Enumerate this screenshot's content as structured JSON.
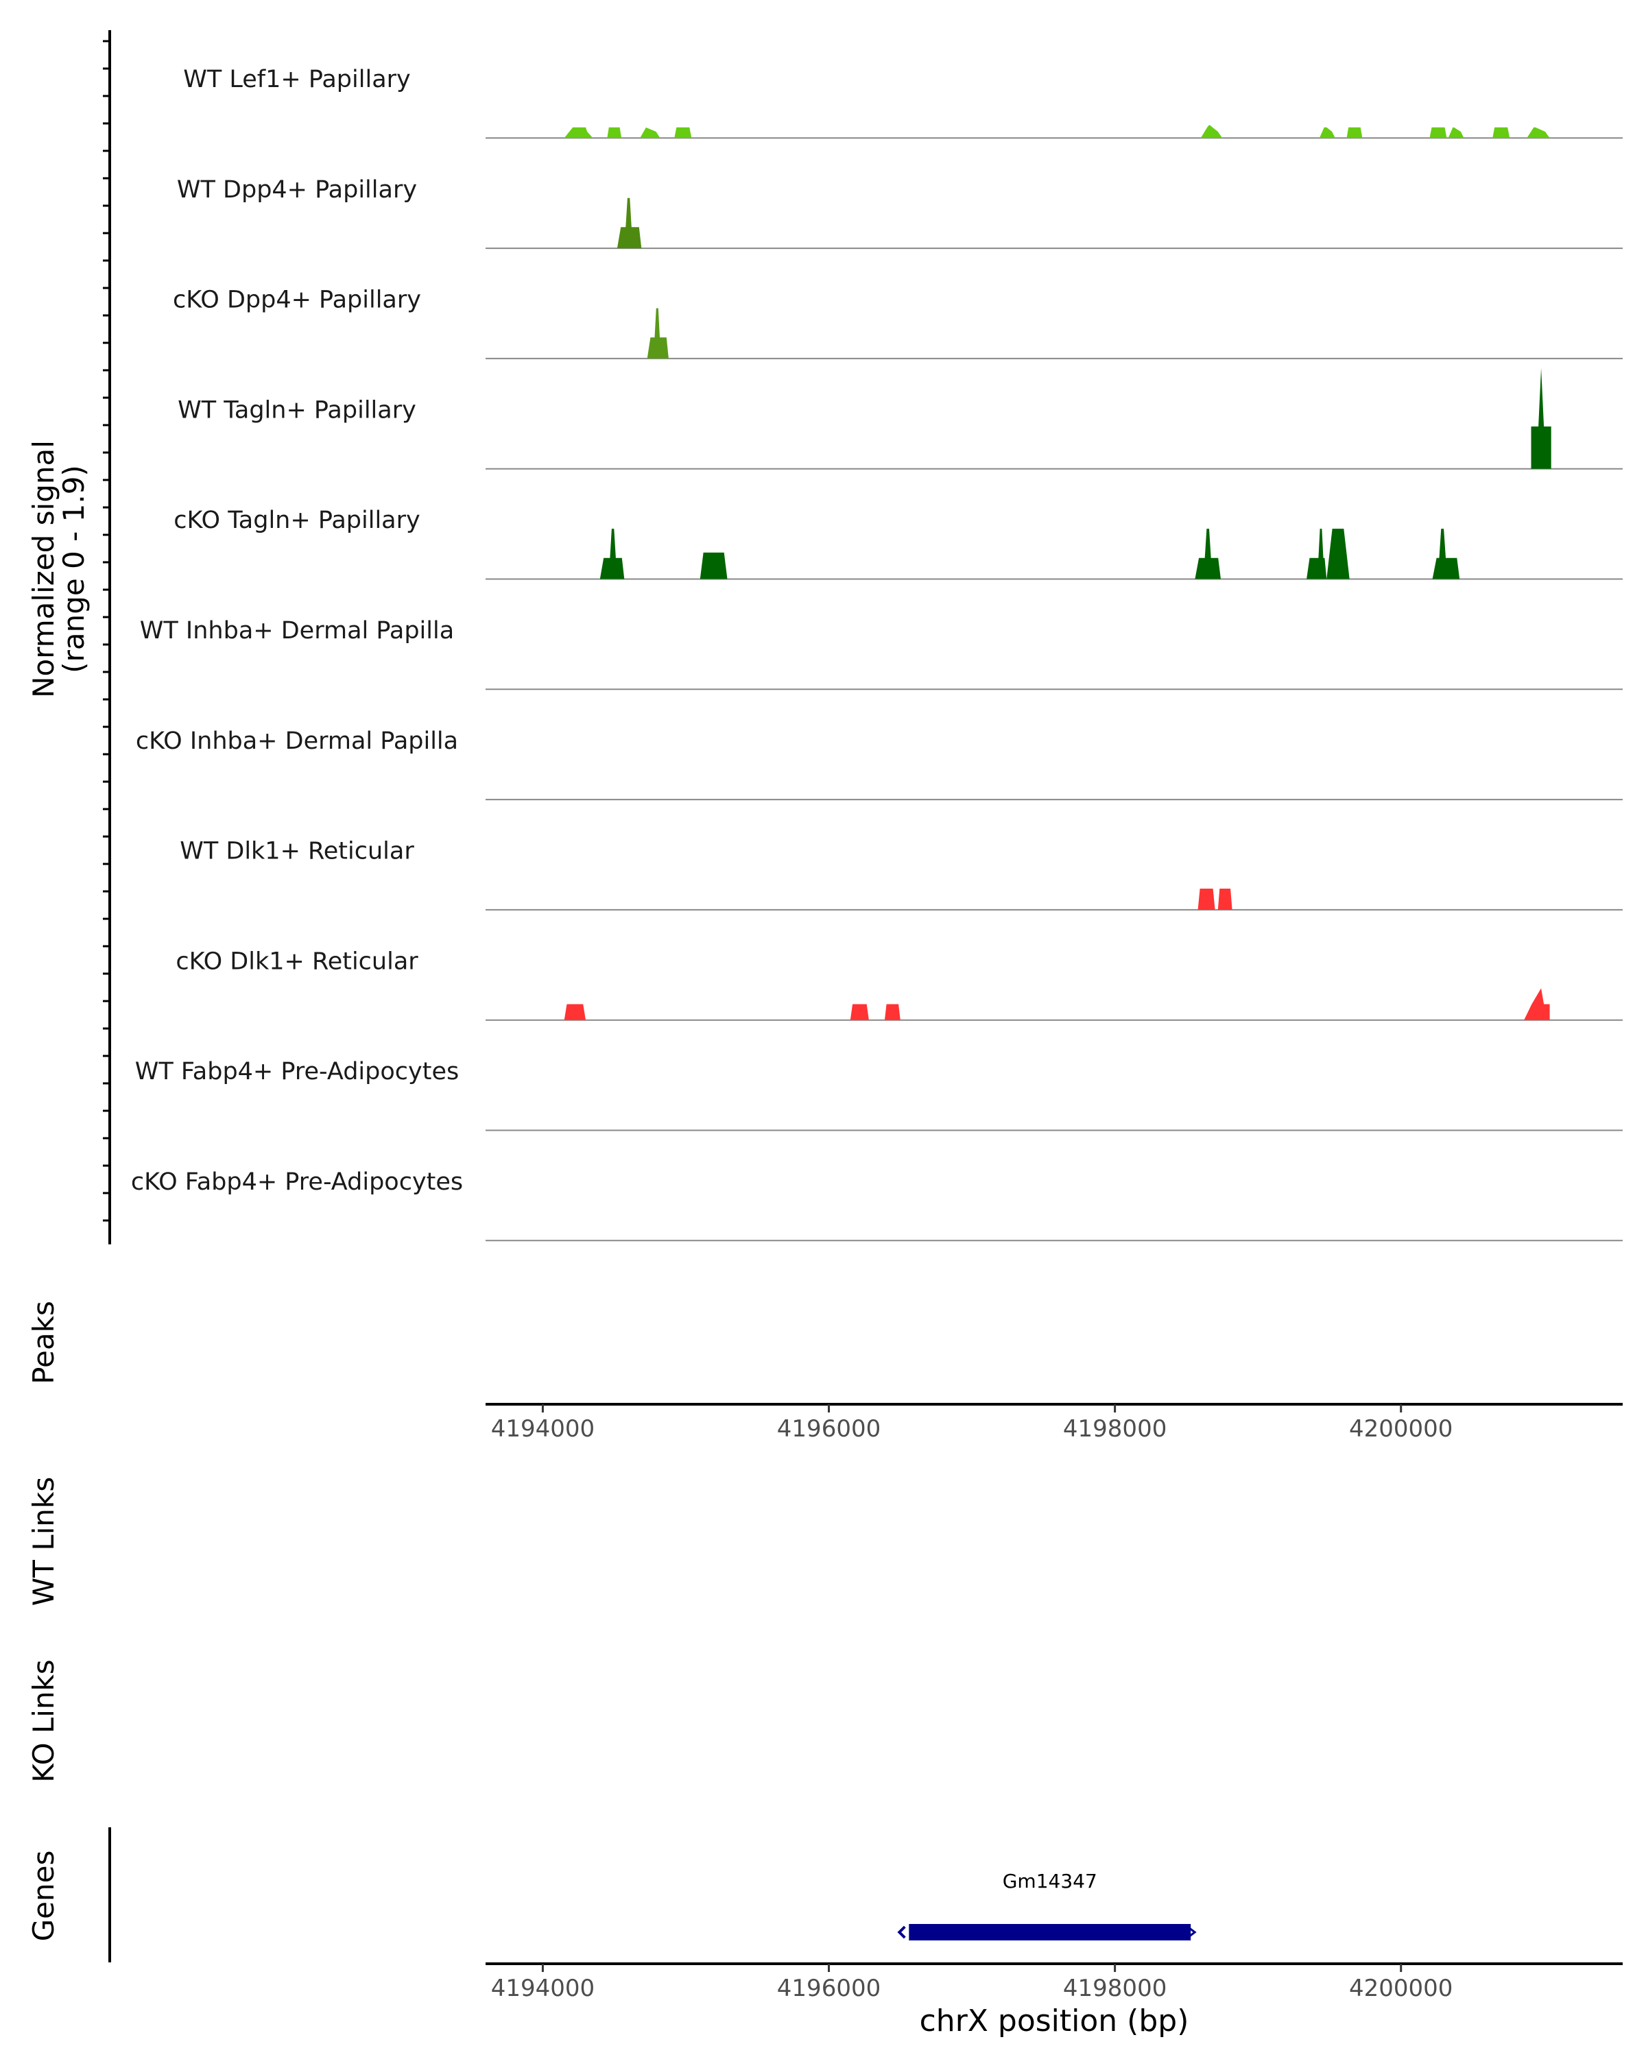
{
  "chart_data": {
    "type": "area",
    "title": "",
    "chromosome": "chrX",
    "xlabel": "chrX position (bp)",
    "ylabel_line1": "Normalized signal",
    "ylabel_line2": "(range 0 - 1.9)",
    "ylim": [
      0,
      1.9
    ],
    "xlim": [
      4193600,
      4201550
    ],
    "x_ticks": [
      4194000,
      4196000,
      4198000,
      4200000
    ],
    "x_tick_labels": [
      "4194000",
      "4196000",
      "4198000",
      "4200000"
    ],
    "tracks": [
      {
        "name": "WT Lef1+ Papillary",
        "color": "#66cc11",
        "peaks": [
          {
            "start": 4194150,
            "peak1": 4194300,
            "end": 4194350,
            "h1": 0.2,
            "h2": 0.2,
            "shape": "mound"
          },
          {
            "start": 4194450,
            "peak1": 4194500,
            "end": 4194550,
            "h1": 0.2,
            "h2": 0.2,
            "shape": "flat"
          },
          {
            "start": 4194680,
            "peak1": 4194720,
            "end": 4194820,
            "h1": 0.2,
            "h2": 0.2,
            "shape": "mound"
          },
          {
            "start": 4194920,
            "peak1": 4194960,
            "end": 4195040,
            "h1": 0.2,
            "h2": 0.2,
            "shape": "flat"
          },
          {
            "start": 4198600,
            "peak1": 4198660,
            "end": 4198750,
            "h1": 0.2,
            "h2": 0.25,
            "shape": "mound"
          },
          {
            "start": 4199430,
            "peak1": 4199480,
            "end": 4199540,
            "h1": 0.2,
            "h2": 0.2,
            "shape": "mound"
          },
          {
            "start": 4199620,
            "peak1": 4199660,
            "end": 4199730,
            "h1": 0.2,
            "h2": 0.2,
            "shape": "flat"
          },
          {
            "start": 4200200,
            "peak1": 4200250,
            "end": 4200320,
            "h1": 0.2,
            "h2": 0.2,
            "shape": "flat"
          },
          {
            "start": 4200330,
            "peak1": 4200370,
            "end": 4200440,
            "h1": 0.2,
            "h2": 0.2,
            "shape": "mound"
          },
          {
            "start": 4200640,
            "peak1": 4200680,
            "end": 4200760,
            "h1": 0.2,
            "h2": 0.2,
            "shape": "flat"
          },
          {
            "start": 4200880,
            "peak1": 4200940,
            "end": 4201040,
            "h1": 0.2,
            "h2": 0.2,
            "shape": "mound"
          }
        ]
      },
      {
        "name": "WT Dpp4+ Papillary",
        "color": "#4f8a10",
        "peaks": [
          {
            "start": 4194520,
            "peak1": 4194600,
            "end": 4194690,
            "h1": 0.95,
            "h2": 0.95,
            "shape": "spike"
          }
        ]
      },
      {
        "name": "cKO Dpp4+ Papillary",
        "color": "#5a9918",
        "peaks": [
          {
            "start": 4194730,
            "peak1": 4194800,
            "end": 4194880,
            "h1": 0.95,
            "h2": 0.95,
            "shape": "spike"
          }
        ]
      },
      {
        "name": "WT Tagln+ Papillary",
        "color": "#006400",
        "peaks": [
          {
            "start": 4200910,
            "peak1": 4200980,
            "end": 4201050,
            "h1": 1.9,
            "h2": 1.9,
            "shape": "tall"
          }
        ]
      },
      {
        "name": "cKO Tagln+ Papillary",
        "color": "#006400",
        "peaks": [
          {
            "start": 4194400,
            "peak1": 4194490,
            "end": 4194570,
            "h1": 0.95,
            "h2": 0.95,
            "shape": "spike"
          },
          {
            "start": 4195100,
            "peak1": 4195150,
            "end": 4195290,
            "h1": 0.5,
            "h2": 0.5,
            "shape": "flat"
          },
          {
            "start": 4198560,
            "peak1": 4198650,
            "end": 4198740,
            "h1": 0.95,
            "h2": 0.95,
            "shape": "spike"
          },
          {
            "start": 4199340,
            "peak1": 4199440,
            "end": 4199480,
            "h1": 0.95,
            "h2": 0.95,
            "shape": "spike"
          },
          {
            "start": 4199480,
            "peak1": 4199560,
            "end": 4199640,
            "h1": 0.95,
            "h2": 0.95,
            "shape": "double"
          },
          {
            "start": 4200220,
            "peak1": 4200290,
            "end": 4200410,
            "h1": 0.95,
            "h2": 0.95,
            "shape": "spike"
          }
        ]
      },
      {
        "name": "WT Inhba+ Dermal Papilla",
        "color": "#006400",
        "peaks": []
      },
      {
        "name": "cKO Inhba+ Dermal Papilla",
        "color": "#006400",
        "peaks": []
      },
      {
        "name": "WT Dlk1+ Reticular",
        "color": "#ff3333",
        "peaks": [
          {
            "start": 4198580,
            "peak1": 4198620,
            "end": 4198700,
            "h1": 0.4,
            "h2": 0.4,
            "shape": "flat"
          },
          {
            "start": 4198720,
            "peak1": 4198760,
            "end": 4198820,
            "h1": 0.4,
            "h2": 0.4,
            "shape": "flat"
          }
        ]
      },
      {
        "name": "cKO Dlk1+ Reticular",
        "color": "#ff3333",
        "peaks": [
          {
            "start": 4194150,
            "peak1": 4194220,
            "end": 4194300,
            "h1": 0.3,
            "h2": 0.3,
            "shape": "flat"
          },
          {
            "start": 4196150,
            "peak1": 4196190,
            "end": 4196280,
            "h1": 0.3,
            "h2": 0.3,
            "shape": "flat"
          },
          {
            "start": 4196390,
            "peak1": 4196430,
            "end": 4196500,
            "h1": 0.3,
            "h2": 0.3,
            "shape": "flat"
          },
          {
            "start": 4200860,
            "peak1": 4200980,
            "end": 4201040,
            "h1": 0.3,
            "h2": 0.6,
            "shape": "ramp"
          }
        ]
      },
      {
        "name": "WT Fabp4+ Pre-Adipocytes",
        "color": "#ff3333",
        "peaks": []
      },
      {
        "name": "cKO Fabp4+ Pre-Adipocytes",
        "color": "#ff3333",
        "peaks": []
      }
    ],
    "peaks_label": "Peaks",
    "wt_links_label": "WT Links",
    "ko_links_label": "KO Links",
    "genes_label": "Genes",
    "genes": [
      {
        "name": "Gm14347",
        "start": 4196560,
        "end": 4198530,
        "strand": "-",
        "color": "#00008b"
      }
    ]
  }
}
